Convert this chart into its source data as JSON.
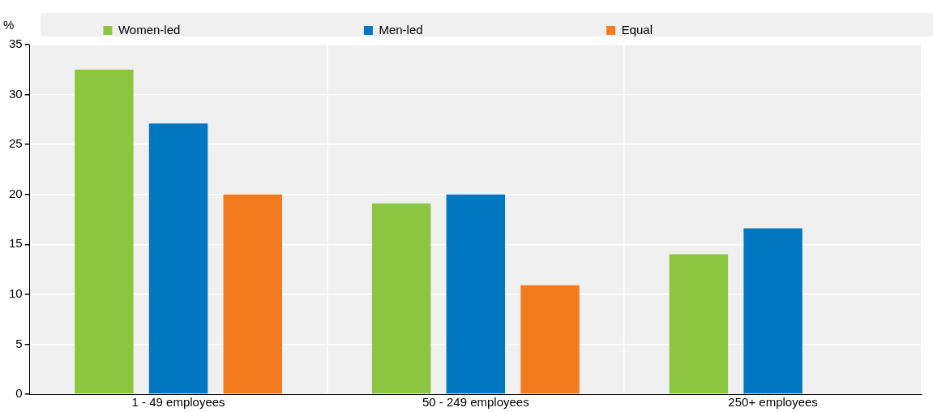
{
  "chart_data": {
    "type": "bar",
    "ylabel": "%",
    "categories": [
      "1 - 49 employees",
      "50 - 249 employees",
      "250+ employees"
    ],
    "series": [
      {
        "name": "Women-led",
        "color": "#8cc641",
        "values": [
          32.5,
          19.1,
          14.0
        ]
      },
      {
        "name": "Men-led",
        "color": "#0077c0",
        "values": [
          27.1,
          20.0,
          16.6
        ]
      },
      {
        "name": "Equal",
        "color": "#f47a20",
        "values": [
          20.0,
          10.9,
          null
        ]
      }
    ],
    "ylim": [
      0,
      35
    ],
    "yticks": [
      0,
      5,
      10,
      15,
      20,
      25,
      30,
      35
    ],
    "grid": true,
    "legend": "top"
  }
}
